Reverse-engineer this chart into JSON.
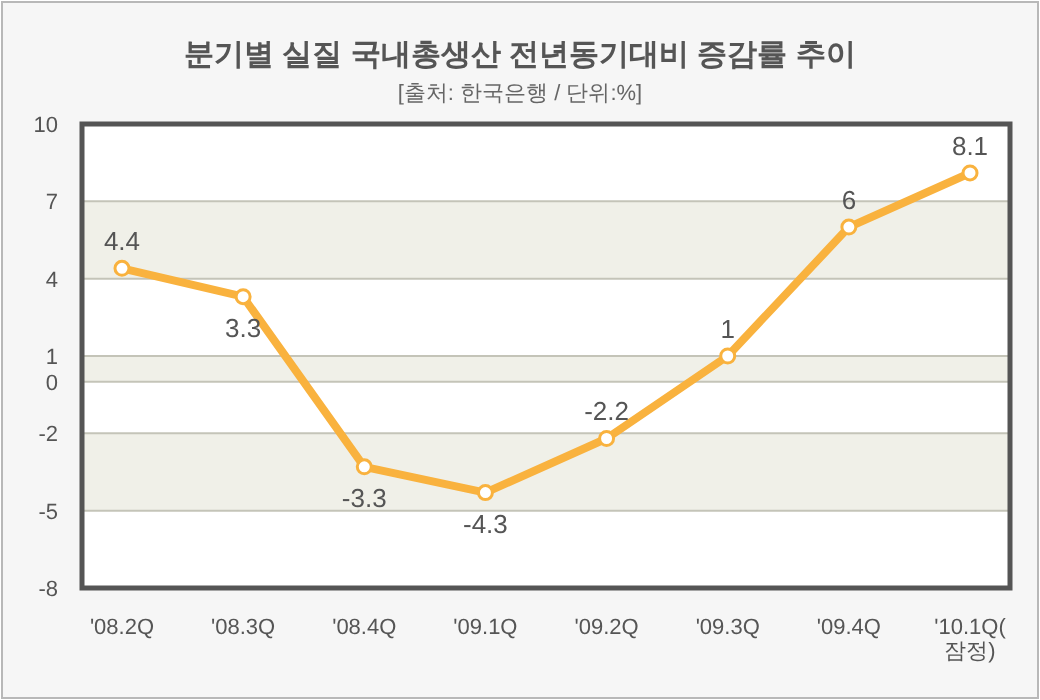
{
  "chart_data": {
    "type": "line",
    "title": "분기별 실질 국내총생산 전년동기대비 증감률 추이",
    "subtitle": "[출처: 한국은행 / 단위:%]",
    "categories": [
      "'08.2Q",
      "'08.3Q",
      "'08.4Q",
      "'09.1Q",
      "'09.2Q",
      "'09.3Q",
      "'09.4Q",
      "'10.1Q(잠정)"
    ],
    "series": [
      {
        "color": "#f9b23e",
        "values": [
          4.4,
          3.3,
          -3.3,
          -4.3,
          -2.2,
          1,
          6,
          8.1
        ]
      }
    ],
    "ylim": [
      -8,
      10
    ],
    "yticks": [
      10,
      7,
      4,
      1,
      0,
      -2,
      -5,
      -8
    ],
    "grid": "y",
    "bands": [
      {
        "axis": "y",
        "from": 4,
        "to": 7,
        "color": "#f0f0e8"
      },
      {
        "axis": "y",
        "from": 0,
        "to": 1,
        "color": "#f0f0e8"
      },
      {
        "axis": "y",
        "from": -5,
        "to": -2,
        "color": "#f0f0e8"
      }
    ],
    "marker": "circle",
    "line_style": "solid",
    "data_labels": true
  }
}
